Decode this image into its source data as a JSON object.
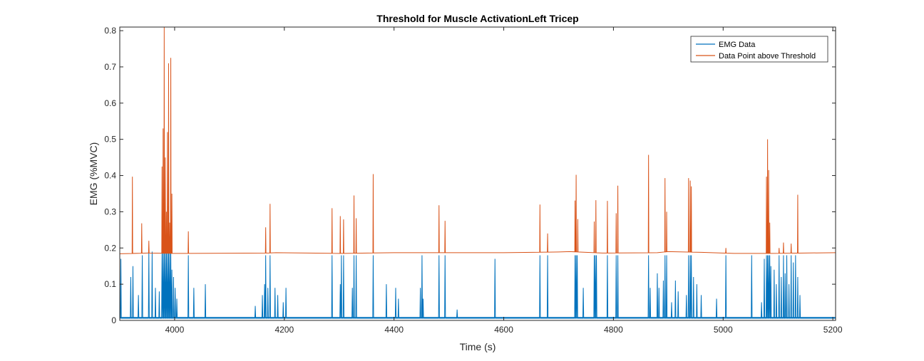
{
  "chart_data": {
    "type": "line",
    "title": "Threshold for Muscle ActivationLeft Tricep",
    "xlabel": "Time (s)",
    "ylabel": "EMG (%MVC)",
    "xlim": [
      3900,
      5205
    ],
    "ylim": [
      0,
      0.81
    ],
    "xticks": [
      4000,
      4200,
      4400,
      4600,
      4800,
      5000,
      5200
    ],
    "xtick_labels": [
      "4000",
      "4200",
      "4400",
      "4600",
      "4800",
      "5000",
      "5200"
    ],
    "yticks": [
      0,
      0.1,
      0.2,
      0.3,
      0.4,
      0.5,
      0.6,
      0.7,
      0.8
    ],
    "ytick_labels": [
      "0",
      "0.1",
      "0.2",
      "0.3",
      "0.4",
      "0.5",
      "0.6",
      "0.7",
      "0.8"
    ],
    "grid": false,
    "legend_position": "top-right",
    "series": [
      {
        "name": "EMG Data",
        "color": "#0072BD",
        "baseline": 0.006,
        "spikes": [
          [
            3902,
            0.17
          ],
          [
            3920,
            0.12
          ],
          [
            3924,
            0.15
          ],
          [
            3934,
            0.07
          ],
          [
            3941,
            0.18
          ],
          [
            3953,
            0.19
          ],
          [
            3959,
            0.19
          ],
          [
            3965,
            0.09
          ],
          [
            3972,
            0.08
          ],
          [
            3977,
            0.185
          ],
          [
            3979,
            0.185
          ],
          [
            3981,
            0.185
          ],
          [
            3983,
            0.185
          ],
          [
            3985,
            0.185
          ],
          [
            3987,
            0.185
          ],
          [
            3989,
            0.185
          ],
          [
            3991,
            0.185
          ],
          [
            3993,
            0.185
          ],
          [
            3995,
            0.14
          ],
          [
            3998,
            0.12
          ],
          [
            4001,
            0.09
          ],
          [
            4004,
            0.06
          ],
          [
            4025,
            0.18
          ],
          [
            4035,
            0.09
          ],
          [
            4056,
            0.1
          ],
          [
            4147,
            0.04
          ],
          [
            4160,
            0.07
          ],
          [
            4164,
            0.1
          ],
          [
            4166,
            0.18
          ],
          [
            4170,
            0.09
          ],
          [
            4174,
            0.18
          ],
          [
            4183,
            0.09
          ],
          [
            4188,
            0.07
          ],
          [
            4198,
            0.05
          ],
          [
            4203,
            0.09
          ],
          [
            4287,
            0.18
          ],
          [
            4302,
            0.1
          ],
          [
            4304,
            0.18
          ],
          [
            4308,
            0.18
          ],
          [
            4324,
            0.09
          ],
          [
            4327,
            0.18
          ],
          [
            4331,
            0.18
          ],
          [
            4362,
            0.18
          ],
          [
            4386,
            0.1
          ],
          [
            4403,
            0.09
          ],
          [
            4408,
            0.06
          ],
          [
            4448,
            0.09
          ],
          [
            4451,
            0.18
          ],
          [
            4453,
            0.06
          ],
          [
            4482,
            0.18
          ],
          [
            4493,
            0.18
          ],
          [
            4515,
            0.03
          ],
          [
            4584,
            0.17
          ],
          [
            4666,
            0.18
          ],
          [
            4680,
            0.18
          ],
          [
            4730,
            0.18
          ],
          [
            4732,
            0.18
          ],
          [
            4734,
            0.18
          ],
          [
            4745,
            0.09
          ],
          [
            4765,
            0.18
          ],
          [
            4767,
            0.18
          ],
          [
            4769,
            0.18
          ],
          [
            4789,
            0.18
          ],
          [
            4805,
            0.18
          ],
          [
            4808,
            0.18
          ],
          [
            4864,
            0.18
          ],
          [
            4867,
            0.09
          ],
          [
            4880,
            0.13
          ],
          [
            4883,
            0.09
          ],
          [
            4891,
            0.11
          ],
          [
            4894,
            0.18
          ],
          [
            4897,
            0.18
          ],
          [
            4906,
            0.05
          ],
          [
            4913,
            0.11
          ],
          [
            4918,
            0.08
          ],
          [
            4933,
            0.07
          ],
          [
            4937,
            0.18
          ],
          [
            4940,
            0.18
          ],
          [
            4942,
            0.18
          ],
          [
            4946,
            0.12
          ],
          [
            4952,
            0.1
          ],
          [
            4960,
            0.07
          ],
          [
            4988,
            0.06
          ],
          [
            5005,
            0.18
          ],
          [
            5052,
            0.18
          ],
          [
            5070,
            0.05
          ],
          [
            5075,
            0.17
          ],
          [
            5079,
            0.18
          ],
          [
            5081,
            0.18
          ],
          [
            5083,
            0.18
          ],
          [
            5085,
            0.18
          ],
          [
            5087,
            0.15
          ],
          [
            5093,
            0.14
          ],
          [
            5097,
            0.1
          ],
          [
            5102,
            0.18
          ],
          [
            5106,
            0.12
          ],
          [
            5110,
            0.18
          ],
          [
            5113,
            0.13
          ],
          [
            5116,
            0.18
          ],
          [
            5120,
            0.1
          ],
          [
            5124,
            0.18
          ],
          [
            5128,
            0.16
          ],
          [
            5132,
            0.18
          ],
          [
            5136,
            0.12
          ],
          [
            5140,
            0.07
          ]
        ]
      },
      {
        "name": "Data Point above Threshold",
        "color": "#D95319",
        "threshold": [
          [
            3900,
            0.184
          ],
          [
            3950,
            0.186
          ],
          [
            4000,
            0.185
          ],
          [
            4170,
            0.186
          ],
          [
            4185,
            0.187
          ],
          [
            4300,
            0.185
          ],
          [
            4400,
            0.187
          ],
          [
            4600,
            0.187
          ],
          [
            4700,
            0.189
          ],
          [
            4720,
            0.19
          ],
          [
            4780,
            0.186
          ],
          [
            4880,
            0.187
          ],
          [
            4900,
            0.19
          ],
          [
            4960,
            0.188
          ],
          [
            5020,
            0.185
          ],
          [
            5080,
            0.185
          ],
          [
            5205,
            0.187
          ]
        ],
        "peaks": [
          [
            3923,
            0.397
          ],
          [
            3940,
            0.268
          ],
          [
            3953,
            0.22
          ],
          [
            3977,
            0.425
          ],
          [
            3979,
            0.53
          ],
          [
            3981,
            0.81
          ],
          [
            3983,
            0.45
          ],
          [
            3985,
            0.3
          ],
          [
            3987,
            0.52
          ],
          [
            3989,
            0.71
          ],
          [
            3991,
            0.27
          ],
          [
            3993,
            0.725
          ],
          [
            3995,
            0.35
          ],
          [
            4025,
            0.246
          ],
          [
            4166,
            0.257
          ],
          [
            4174,
            0.322
          ],
          [
            4287,
            0.31
          ],
          [
            4302,
            0.288
          ],
          [
            4308,
            0.279
          ],
          [
            4327,
            0.345
          ],
          [
            4331,
            0.282
          ],
          [
            4362,
            0.404
          ],
          [
            4482,
            0.318
          ],
          [
            4493,
            0.275
          ],
          [
            4666,
            0.32
          ],
          [
            4680,
            0.24
          ],
          [
            4730,
            0.331
          ],
          [
            4732,
            0.402
          ],
          [
            4735,
            0.28
          ],
          [
            4765,
            0.273
          ],
          [
            4768,
            0.332
          ],
          [
            4789,
            0.33
          ],
          [
            4805,
            0.296
          ],
          [
            4808,
            0.372
          ],
          [
            4864,
            0.457
          ],
          [
            4894,
            0.393
          ],
          [
            4897,
            0.3
          ],
          [
            4937,
            0.393
          ],
          [
            4940,
            0.386
          ],
          [
            4942,
            0.37
          ],
          [
            5005,
            0.2
          ],
          [
            5079,
            0.397
          ],
          [
            5081,
            0.5
          ],
          [
            5083,
            0.415
          ],
          [
            5085,
            0.27
          ],
          [
            5102,
            0.2
          ],
          [
            5110,
            0.215
          ],
          [
            5124,
            0.212
          ],
          [
            5136,
            0.347
          ]
        ]
      }
    ]
  }
}
